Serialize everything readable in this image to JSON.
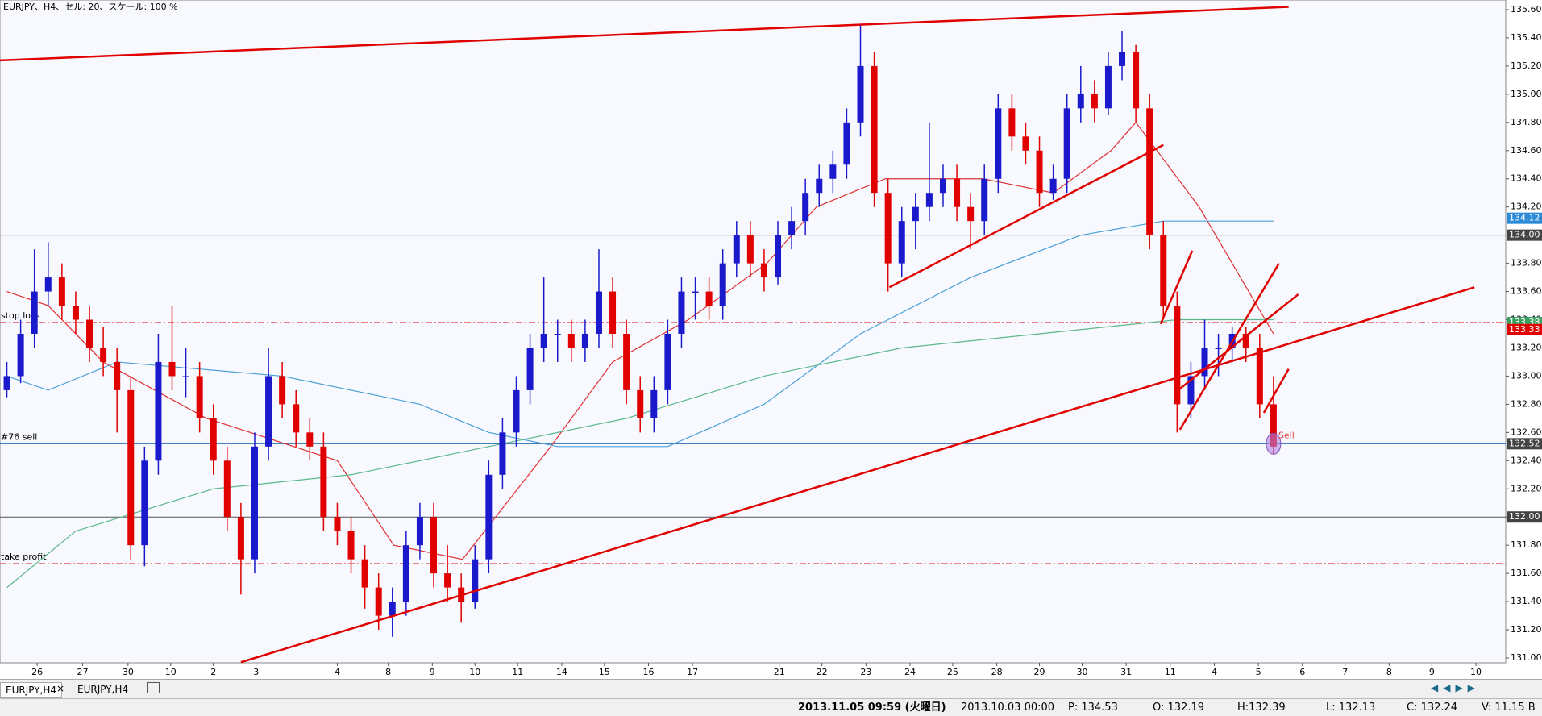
{
  "header": {
    "title": "EURJPY、H4、セル: 20、スケール: 100 %"
  },
  "chart_data": {
    "type": "candlestick",
    "up_color": "#1a1acc",
    "down_color": "#e00000",
    "candles": [
      [
        132.9,
        133.1,
        132.85,
        133.0
      ],
      [
        133.0,
        133.4,
        132.95,
        133.3
      ],
      [
        133.3,
        133.9,
        133.2,
        133.6
      ],
      [
        133.6,
        133.95,
        133.5,
        133.7
      ],
      [
        133.7,
        133.8,
        133.4,
        133.5
      ],
      [
        133.5,
        133.6,
        133.3,
        133.4
      ],
      [
        133.4,
        133.5,
        133.1,
        133.2
      ],
      [
        133.2,
        133.35,
        133.0,
        133.1
      ],
      [
        133.1,
        133.2,
        132.6,
        132.9
      ],
      [
        132.9,
        133.0,
        131.7,
        131.8
      ],
      [
        131.8,
        132.5,
        131.65,
        132.4
      ],
      [
        132.4,
        133.3,
        132.3,
        133.1
      ],
      [
        133.1,
        133.5,
        132.9,
        133.0
      ],
      [
        133.0,
        133.2,
        132.85,
        133.0
      ],
      [
        133.0,
        133.1,
        132.6,
        132.7
      ],
      [
        132.7,
        132.8,
        132.3,
        132.4
      ],
      [
        132.4,
        132.5,
        131.9,
        132.0
      ],
      [
        132.0,
        132.1,
        131.45,
        131.7
      ],
      [
        131.7,
        132.6,
        131.6,
        132.5
      ],
      [
        132.5,
        133.2,
        132.4,
        133.0
      ],
      [
        133.0,
        133.1,
        132.7,
        132.8
      ],
      [
        132.8,
        132.9,
        132.5,
        132.6
      ],
      [
        132.6,
        132.7,
        132.4,
        132.5
      ],
      [
        132.5,
        132.6,
        131.9,
        132.0
      ],
      [
        132.0,
        132.1,
        131.8,
        131.9
      ],
      [
        131.9,
        132.0,
        131.6,
        131.7
      ],
      [
        131.7,
        131.8,
        131.35,
        131.5
      ],
      [
        131.5,
        131.6,
        131.2,
        131.3
      ],
      [
        131.3,
        131.5,
        131.15,
        131.4
      ],
      [
        131.4,
        131.9,
        131.3,
        131.8
      ],
      [
        131.8,
        132.1,
        131.7,
        132.0
      ],
      [
        132.0,
        132.1,
        131.5,
        131.6
      ],
      [
        131.6,
        131.8,
        131.4,
        131.5
      ],
      [
        131.5,
        131.6,
        131.25,
        131.4
      ],
      [
        131.4,
        131.8,
        131.35,
        131.7
      ],
      [
        131.7,
        132.4,
        131.6,
        132.3
      ],
      [
        132.3,
        132.7,
        132.2,
        132.6
      ],
      [
        132.6,
        133.0,
        132.5,
        132.9
      ],
      [
        132.9,
        133.3,
        132.8,
        133.2
      ],
      [
        133.2,
        133.7,
        133.1,
        133.3
      ],
      [
        133.3,
        133.4,
        133.1,
        133.3
      ],
      [
        133.3,
        133.4,
        133.1,
        133.2
      ],
      [
        133.2,
        133.4,
        133.1,
        133.3
      ],
      [
        133.3,
        133.9,
        133.2,
        133.6
      ],
      [
        133.6,
        133.7,
        133.2,
        133.3
      ],
      [
        133.3,
        133.4,
        132.8,
        132.9
      ],
      [
        132.9,
        133.0,
        132.6,
        132.7
      ],
      [
        132.7,
        133.0,
        132.6,
        132.9
      ],
      [
        132.9,
        133.4,
        132.8,
        133.3
      ],
      [
        133.3,
        133.7,
        133.2,
        133.6
      ],
      [
        133.6,
        133.7,
        133.4,
        133.6
      ],
      [
        133.6,
        133.7,
        133.4,
        133.5
      ],
      [
        133.5,
        133.9,
        133.4,
        133.8
      ],
      [
        133.8,
        134.1,
        133.7,
        134.0
      ],
      [
        134.0,
        134.1,
        133.7,
        133.8
      ],
      [
        133.8,
        133.9,
        133.6,
        133.7
      ],
      [
        133.7,
        134.1,
        133.65,
        134.0
      ],
      [
        134.0,
        134.2,
        133.9,
        134.1
      ],
      [
        134.1,
        134.4,
        134.0,
        134.3
      ],
      [
        134.3,
        134.5,
        134.2,
        134.4
      ],
      [
        134.4,
        134.6,
        134.3,
        134.5
      ],
      [
        134.5,
        134.9,
        134.4,
        134.8
      ],
      [
        134.8,
        135.5,
        134.7,
        135.2
      ],
      [
        135.2,
        135.3,
        134.2,
        134.3
      ],
      [
        134.3,
        134.4,
        133.6,
        133.8
      ],
      [
        133.8,
        134.2,
        133.7,
        134.1
      ],
      [
        134.1,
        134.3,
        133.9,
        134.2
      ],
      [
        134.2,
        134.8,
        134.1,
        134.3
      ],
      [
        134.3,
        134.5,
        134.2,
        134.4
      ],
      [
        134.4,
        134.5,
        134.1,
        134.2
      ],
      [
        134.2,
        134.3,
        133.9,
        134.1
      ],
      [
        134.1,
        134.5,
        134.0,
        134.4
      ],
      [
        134.4,
        135.0,
        134.3,
        134.9
      ],
      [
        134.9,
        135.0,
        134.6,
        134.7
      ],
      [
        134.7,
        134.8,
        134.5,
        134.6
      ],
      [
        134.6,
        134.7,
        134.2,
        134.3
      ],
      [
        134.3,
        134.5,
        134.25,
        134.4
      ],
      [
        134.4,
        135.0,
        134.3,
        134.9
      ],
      [
        134.9,
        135.2,
        134.8,
        135.0
      ],
      [
        135.0,
        135.1,
        134.8,
        134.9
      ],
      [
        134.9,
        135.3,
        134.85,
        135.2
      ],
      [
        135.2,
        135.45,
        135.1,
        135.3
      ],
      [
        135.3,
        135.35,
        134.8,
        134.9
      ],
      [
        134.9,
        135.0,
        133.9,
        134.0
      ],
      [
        134.0,
        134.1,
        133.4,
        133.5
      ],
      [
        133.5,
        133.6,
        132.6,
        132.8
      ],
      [
        132.8,
        133.1,
        132.7,
        133.0
      ],
      [
        133.0,
        133.4,
        132.9,
        133.2
      ],
      [
        133.2,
        133.3,
        133.0,
        133.2
      ],
      [
        133.2,
        133.35,
        133.1,
        133.3
      ],
      [
        133.3,
        133.35,
        133.1,
        133.2
      ],
      [
        133.2,
        133.3,
        132.7,
        132.8
      ],
      [
        132.8,
        133.0,
        132.45,
        132.5
      ]
    ],
    "moving_averages": [
      {
        "color": "#e03030",
        "points": [
          [
            0,
            133.6
          ],
          [
            3,
            133.5
          ],
          [
            7,
            133.1
          ],
          [
            14.5,
            132.7
          ],
          [
            24,
            132.4
          ],
          [
            28.1,
            131.8
          ],
          [
            33.1,
            131.7
          ],
          [
            39.5,
            132.5
          ],
          [
            44,
            133.1
          ],
          [
            49.5,
            133.4
          ],
          [
            55.2,
            133.8
          ],
          [
            58.8,
            134.2
          ],
          [
            63.8,
            134.4
          ],
          [
            70.9,
            134.4
          ],
          [
            76,
            134.3
          ],
          [
            80.2,
            134.6
          ],
          [
            82,
            134.8
          ],
          [
            86.6,
            134.2
          ],
          [
            92,
            133.3
          ]
        ]
      },
      {
        "color": "#4a9fd8",
        "points": [
          [
            0,
            133.0
          ],
          [
            3,
            132.9
          ],
          [
            8,
            133.1
          ],
          [
            20,
            133.0
          ],
          [
            30,
            132.8
          ],
          [
            35,
            132.6
          ],
          [
            40,
            132.5
          ],
          [
            48,
            132.5
          ],
          [
            55,
            132.8
          ],
          [
            62,
            133.3
          ],
          [
            70,
            133.7
          ],
          [
            78,
            134.0
          ],
          [
            84,
            134.1
          ],
          [
            92,
            134.1
          ]
        ]
      },
      {
        "color": "#5cb88a",
        "points": [
          [
            0,
            131.5
          ],
          [
            5,
            131.9
          ],
          [
            15,
            132.2
          ],
          [
            25,
            132.3
          ],
          [
            35,
            132.5
          ],
          [
            45,
            132.7
          ],
          [
            55,
            133.0
          ],
          [
            65,
            133.2
          ],
          [
            75,
            133.3
          ],
          [
            85,
            133.4
          ],
          [
            92,
            133.4
          ]
        ]
      }
    ],
    "trend_lines": [
      {
        "color": "#e00000",
        "points": [
          [
            -0.5,
            135.24
          ],
          [
            93.1,
            135.62
          ]
        ]
      },
      {
        "color": "#e00000",
        "points": [
          [
            17,
            130.97
          ],
          [
            106.6,
            133.63
          ]
        ]
      },
      {
        "color": "#e00000",
        "points": [
          [
            64.1,
            133.63
          ],
          [
            84,
            134.64
          ]
        ]
      },
      {
        "color": "#e00000",
        "points": [
          [
            83.8,
            133.37
          ],
          [
            86.1,
            133.89
          ]
        ]
      },
      {
        "color": "#e00000",
        "points": [
          [
            85.2,
            132.62
          ],
          [
            92.4,
            133.8
          ]
        ]
      },
      {
        "color": "#e00000",
        "points": [
          [
            85.2,
            132.91
          ],
          [
            93.8,
            133.58
          ]
        ]
      },
      {
        "color": "#e00000",
        "points": [
          [
            91.3,
            132.74
          ],
          [
            93.1,
            133.05
          ]
        ]
      }
    ],
    "levels": [
      {
        "value": 134.0,
        "color": "#555555",
        "style": "solid"
      },
      {
        "value": 132.0,
        "color": "#555555",
        "style": "solid"
      },
      {
        "value": 133.38,
        "label": "stop loss",
        "color": "#e00000",
        "style": "dashdot"
      },
      {
        "value": 132.52,
        "label": "#76 sell",
        "color": "#2a6fb0",
        "style": "solid"
      },
      {
        "value": 131.67,
        "label": "take profit",
        "color": "#e04040",
        "style": "dashdot"
      }
    ],
    "price_tags": [
      {
        "value": 134.12,
        "label": "134.12",
        "color": "#2a8ad8"
      },
      {
        "value": 134.0,
        "label": "134.00",
        "color": "#444444"
      },
      {
        "value": 133.38,
        "label": "133.38",
        "color": "#3aa060"
      },
      {
        "value": 133.33,
        "label": "133.33",
        "color": "#e00000"
      },
      {
        "value": 132.52,
        "label": "132.52",
        "color": "#444444"
      },
      {
        "value": 132.0,
        "label": "132.00",
        "color": "#444444"
      }
    ],
    "signal": {
      "label": "Sell",
      "value": 132.52,
      "index": 92
    },
    "ylim": [
      131.0,
      135.6
    ],
    "yticks": [
      {
        "value": 135.6,
        "label": "135.60"
      },
      {
        "value": 135.4,
        "label": "135.40"
      },
      {
        "value": 135.2,
        "label": "135.20"
      },
      {
        "value": 135.0,
        "label": "135.00"
      },
      {
        "value": 134.8,
        "label": "134.80"
      },
      {
        "value": 134.6,
        "label": "134.60"
      },
      {
        "value": 134.4,
        "label": "134.40"
      },
      {
        "value": 134.2,
        "label": "134.20"
      },
      {
        "value": 134.0,
        "label": "134.00"
      },
      {
        "value": 133.8,
        "label": "133.80"
      },
      {
        "value": 133.6,
        "label": "133.60"
      },
      {
        "value": 133.4,
        "label": "133.40"
      },
      {
        "value": 133.2,
        "label": "133.20"
      },
      {
        "value": 133.0,
        "label": "133.00"
      },
      {
        "value": 132.8,
        "label": "132.80"
      },
      {
        "value": 132.6,
        "label": "132.60"
      },
      {
        "value": 132.4,
        "label": "132.40"
      },
      {
        "value": 132.2,
        "label": "132.20"
      },
      {
        "value": 132.0,
        "label": "132.00"
      },
      {
        "value": 131.8,
        "label": "131.80"
      },
      {
        "value": 131.6,
        "label": "131.60"
      },
      {
        "value": 131.4,
        "label": "131.40"
      },
      {
        "value": 131.2,
        "label": "131.20"
      },
      {
        "value": 131.0,
        "label": "131.00"
      }
    ],
    "xticks": [
      {
        "value": 2.2,
        "label": "26"
      },
      {
        "value": 5.5,
        "label": "27"
      },
      {
        "value": 8.8,
        "label": "30"
      },
      {
        "value": 11.9,
        "label": "10"
      },
      {
        "value": 15,
        "label": "2"
      },
      {
        "value": 18.1,
        "label": "3"
      },
      {
        "value": 24,
        "label": "4"
      },
      {
        "value": 27.7,
        "label": "8"
      },
      {
        "value": 30.9,
        "label": "9"
      },
      {
        "value": 34,
        "label": "10"
      },
      {
        "value": 37.1,
        "label": "11"
      },
      {
        "value": 40.3,
        "label": "14"
      },
      {
        "value": 43.4,
        "label": "15"
      },
      {
        "value": 46.6,
        "label": "16"
      },
      {
        "value": 49.8,
        "label": "17"
      },
      {
        "value": 56.1,
        "label": "21"
      },
      {
        "value": 59.2,
        "label": "22"
      },
      {
        "value": 62.4,
        "label": "23"
      },
      {
        "value": 65.6,
        "label": "24"
      },
      {
        "value": 68.7,
        "label": "25"
      },
      {
        "value": 71.9,
        "label": "28"
      },
      {
        "value": 75,
        "label": "29"
      },
      {
        "value": 78.1,
        "label": "30"
      },
      {
        "value": 81.3,
        "label": "31"
      },
      {
        "value": 84.5,
        "label": "11"
      },
      {
        "value": 87.7,
        "label": "4"
      },
      {
        "value": 90.9,
        "label": "5"
      },
      {
        "value": 94.1,
        "label": "6"
      },
      {
        "value": 97.2,
        "label": "7"
      },
      {
        "value": 100.4,
        "label": "8"
      },
      {
        "value": 103.5,
        "label": "9"
      },
      {
        "value": 106.7,
        "label": "10"
      }
    ]
  },
  "tabs": [
    "EURJPY,H4",
    "EURJPY,H4"
  ],
  "status": [
    "2013.11.05 09:59 (火曜日)",
    "2013.10.03 00:00",
    "P: 134.53",
    "O: 132.19",
    "H:132.39",
    "L: 132.13",
    "C: 132.24",
    "V: 11.15 B"
  ]
}
